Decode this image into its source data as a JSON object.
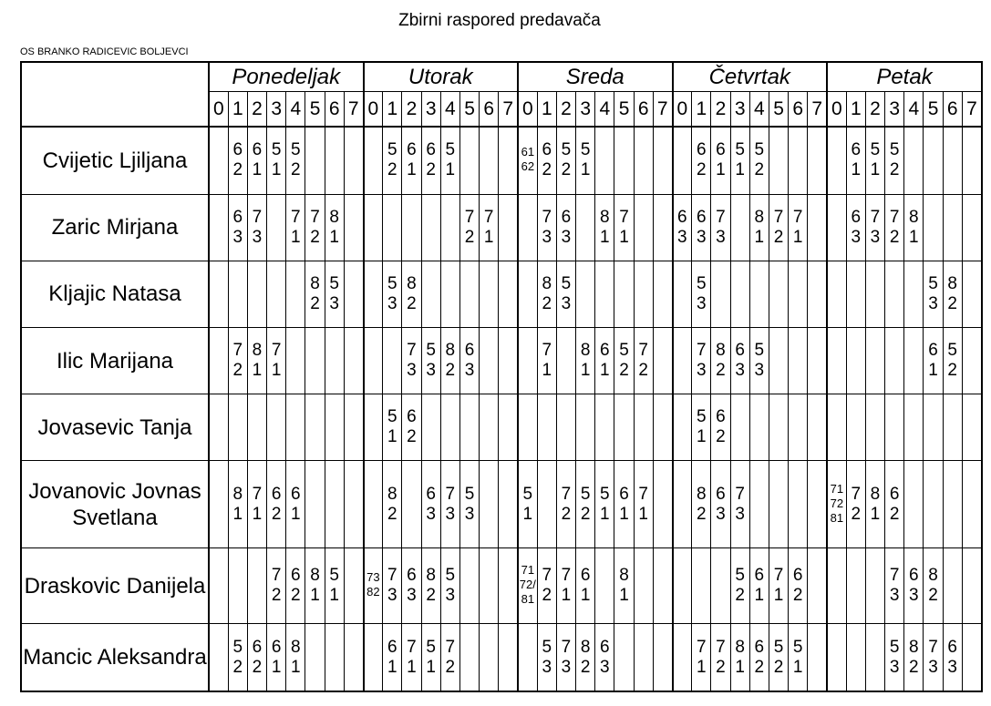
{
  "title": "Zbirni raspored predavača",
  "school": "OS BRANKO RADICEVIC BOLJEVCI",
  "days": [
    "Ponedeljak",
    "Utorak",
    "Sreda",
    "Četvrtak",
    "Petak"
  ],
  "periods": [
    "0",
    "1",
    "2",
    "3",
    "4",
    "5",
    "6",
    "7"
  ],
  "teachers": [
    {
      "name": "Cvijetic Ljiljana",
      "cells": [
        "",
        "62",
        "61",
        "51",
        "52",
        "",
        "",
        "",
        "",
        "52",
        "61",
        "62",
        "51",
        "",
        "",
        "",
        "61\n62",
        "62",
        "52",
        "51",
        "",
        "",
        "",
        "",
        "",
        "62",
        "61",
        "51",
        "52",
        "",
        "",
        "",
        "",
        "61",
        "51",
        "52",
        "",
        "",
        "",
        ""
      ]
    },
    {
      "name": "Zaric Mirjana",
      "cells": [
        "",
        "63",
        "73",
        "",
        "71",
        "72",
        "81",
        "",
        "",
        "",
        "",
        "",
        "",
        "72",
        "71",
        "",
        "",
        "73",
        "63",
        "",
        "81",
        "71",
        "",
        "",
        "63",
        "63",
        "73",
        "",
        "81",
        "72",
        "71",
        "",
        "",
        "63",
        "73",
        "72",
        "81",
        "",
        "",
        ""
      ]
    },
    {
      "name": "Kljajic Natasa",
      "cells": [
        "",
        "",
        "",
        "",
        "",
        "82",
        "53",
        "",
        "",
        "53",
        "82",
        "",
        "",
        "",
        "",
        "",
        "",
        "82",
        "53",
        "",
        "",
        "",
        "",
        "",
        "",
        "53",
        "",
        "",
        "",
        "",
        "",
        "",
        "",
        "",
        "",
        "",
        "",
        "53",
        "82",
        ""
      ]
    },
    {
      "name": "Ilic Marijana",
      "cells": [
        "",
        "72",
        "81",
        "71",
        "",
        "",
        "",
        "",
        "",
        "",
        "73",
        "53",
        "82",
        "63",
        "",
        "",
        "",
        "71",
        "",
        "81",
        "61",
        "52",
        "72",
        "",
        "",
        "73",
        "82",
        "63",
        "53",
        "",
        "",
        "",
        "",
        "",
        "",
        "",
        "",
        "61",
        "52",
        ""
      ]
    },
    {
      "name": "Jovasevic Tanja",
      "cells": [
        "",
        "",
        "",
        "",
        "",
        "",
        "",
        "",
        "",
        "51",
        "62",
        "",
        "",
        "",
        "",
        "",
        "",
        "",
        "",
        "",
        "",
        "",
        "",
        "",
        "",
        "51",
        "62",
        "",
        "",
        "",
        "",
        "",
        "",
        "",
        "",
        "",
        "",
        "",
        "",
        ""
      ]
    },
    {
      "name": "Jovanovic Jovnas Svetlana",
      "cells": [
        "",
        "81",
        "71",
        "62",
        "61",
        "",
        "",
        "",
        "",
        "82",
        "",
        "63",
        "73",
        "53",
        "",
        "",
        "51",
        "",
        "72",
        "52",
        "51",
        "61",
        "71",
        "",
        "",
        "82",
        "63",
        "73",
        "",
        "",
        "",
        "",
        "71\n72\n81",
        "72",
        "81",
        "62",
        "",
        "",
        "",
        ""
      ]
    },
    {
      "name": "Draskovic Danijela",
      "cells": [
        "",
        "",
        "",
        "72",
        "62",
        "81",
        "51",
        "",
        "73\n82",
        "73",
        "63",
        "82",
        "53",
        "",
        "",
        "",
        "71\n72/\n81",
        "72",
        "71",
        "61",
        "",
        "81",
        "",
        "",
        "",
        "",
        "",
        "52",
        "61",
        "71",
        "62",
        "",
        "",
        "",
        "",
        "73",
        "63",
        "82",
        "",
        ""
      ]
    },
    {
      "name": "Mancic Aleksandra",
      "cells": [
        "",
        "52",
        "62",
        "61",
        "81",
        "",
        "",
        "",
        "",
        "61",
        "71",
        "51",
        "72",
        "",
        "",
        "",
        "",
        "53",
        "73",
        "82",
        "63",
        "",
        "",
        "",
        "",
        "71",
        "72",
        "81",
        "62",
        "52",
        "51",
        "",
        "",
        "",
        "",
        "53",
        "82",
        "73",
        "63",
        ""
      ]
    }
  ]
}
